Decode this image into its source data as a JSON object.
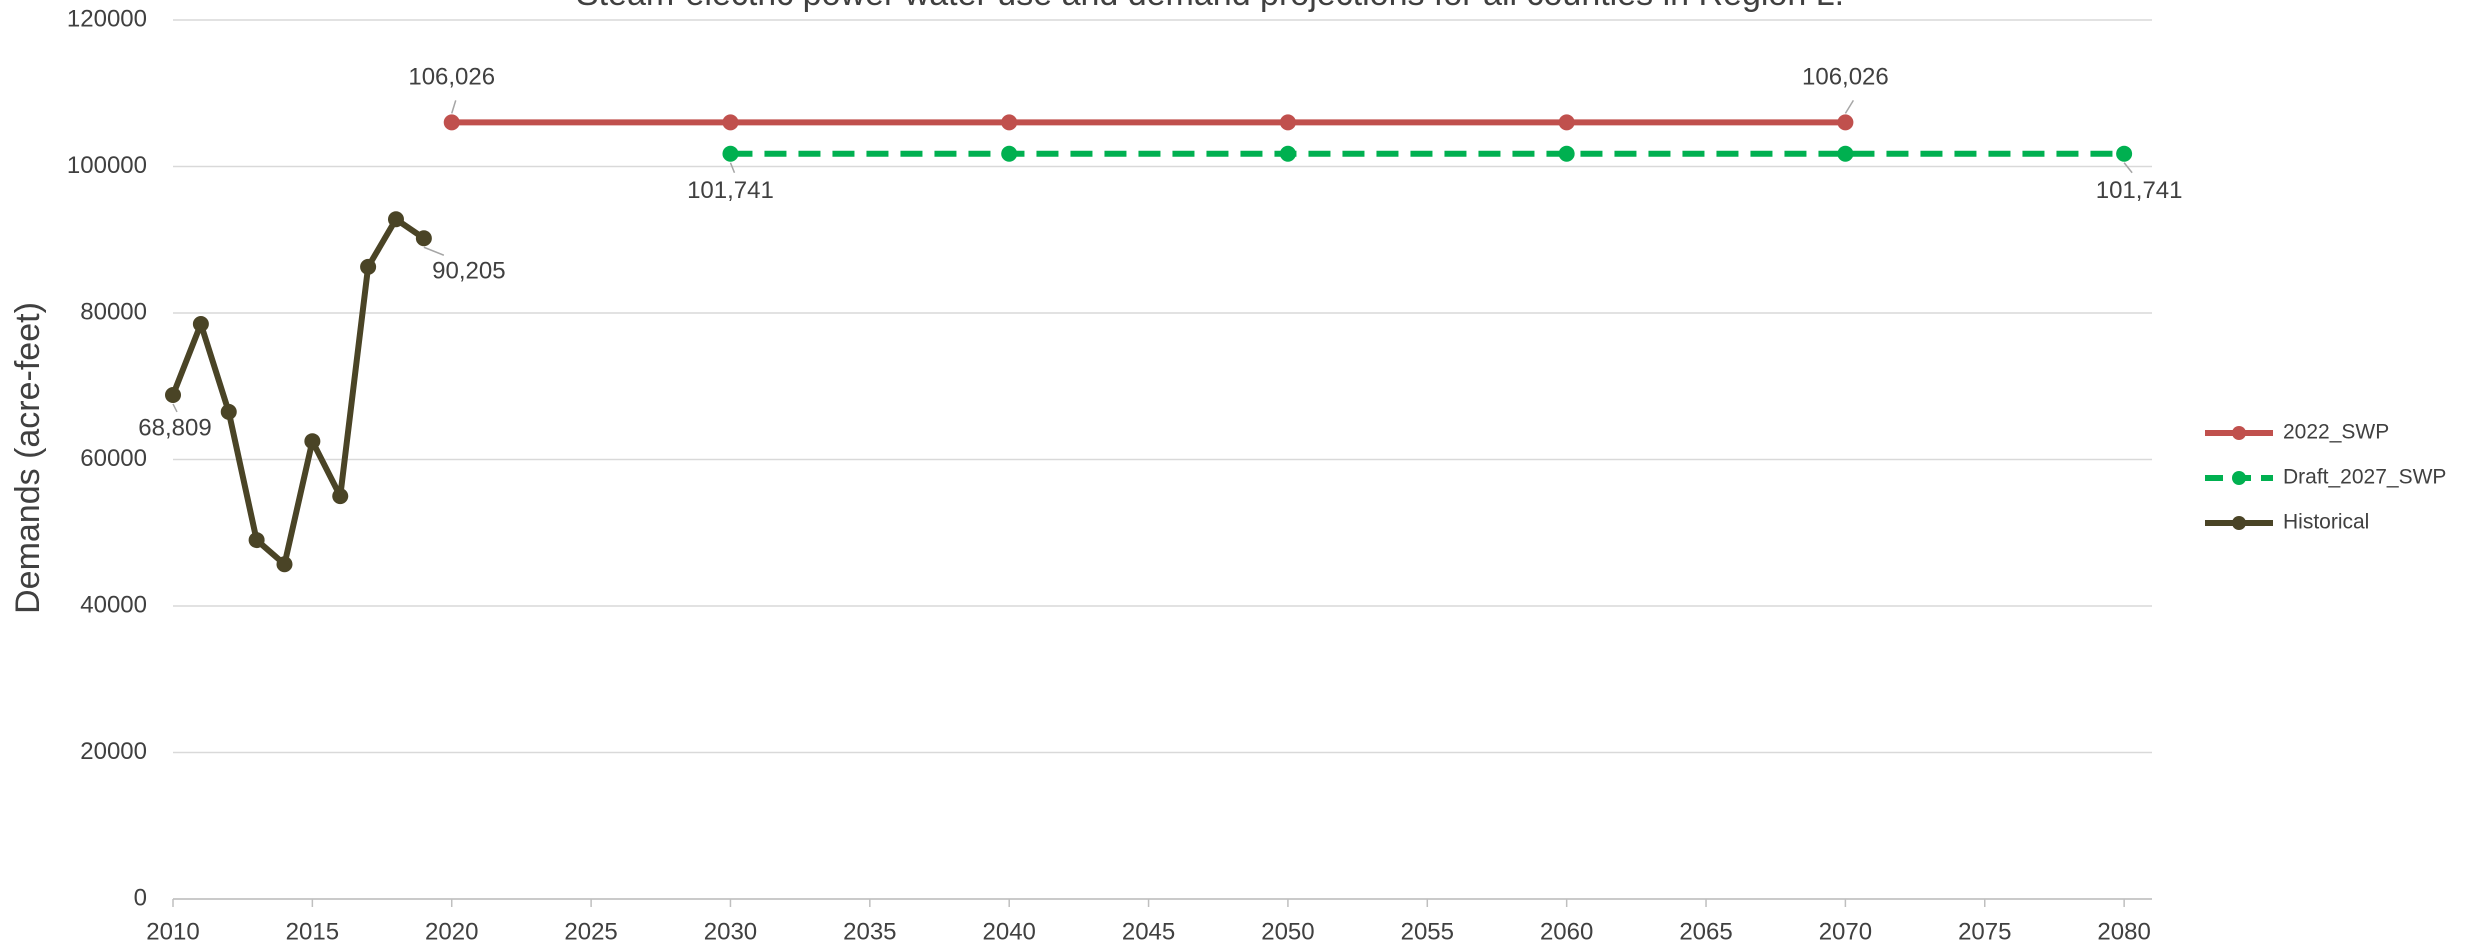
{
  "chart_data": {
    "type": "line",
    "title": "Steam-electric power water use and demand projections for all counties in Region L.",
    "y_label": "Demands (acre-feet)",
    "xlim": [
      2010,
      2081
    ],
    "xticks": [
      2010,
      2015,
      2020,
      2025,
      2030,
      2035,
      2040,
      2045,
      2050,
      2055,
      2060,
      2065,
      2070,
      2075,
      2080
    ],
    "ylim": [
      0,
      120000
    ],
    "yticks": [
      0,
      20000,
      40000,
      60000,
      80000,
      100000,
      120000
    ],
    "grid": true,
    "legend": "right",
    "series": [
      {
        "name": "2022_SWP",
        "color": "#c0504d",
        "dash": false,
        "x": [
          2020,
          2030,
          2040,
          2050,
          2060,
          2070
        ],
        "values": [
          106026,
          106026,
          106026,
          106026,
          106026,
          106026
        ],
        "value_labels": [
          "106,026",
          null,
          null,
          null,
          null,
          "106,026"
        ]
      },
      {
        "name": "Draft_2027_SWP",
        "color": "#00b050",
        "dash": true,
        "x": [
          2030,
          2040,
          2050,
          2060,
          2070,
          2080
        ],
        "values": [
          101741,
          101741,
          101741,
          101741,
          101741,
          101741
        ],
        "value_labels": [
          "101,741",
          null,
          null,
          null,
          null,
          "101,741"
        ]
      },
      {
        "name": "Historical",
        "color": "#4a4426",
        "dash": false,
        "x": [
          2010,
          2011,
          2012,
          2013,
          2014,
          2015,
          2016,
          2017,
          2018,
          2019
        ],
        "values": [
          68809,
          78500,
          66500,
          49000,
          45700,
          62500,
          55000,
          86300,
          92800,
          90205
        ],
        "value_labels": [
          "68,809",
          null,
          null,
          null,
          null,
          null,
          null,
          null,
          null,
          "90,205"
        ]
      }
    ]
  }
}
